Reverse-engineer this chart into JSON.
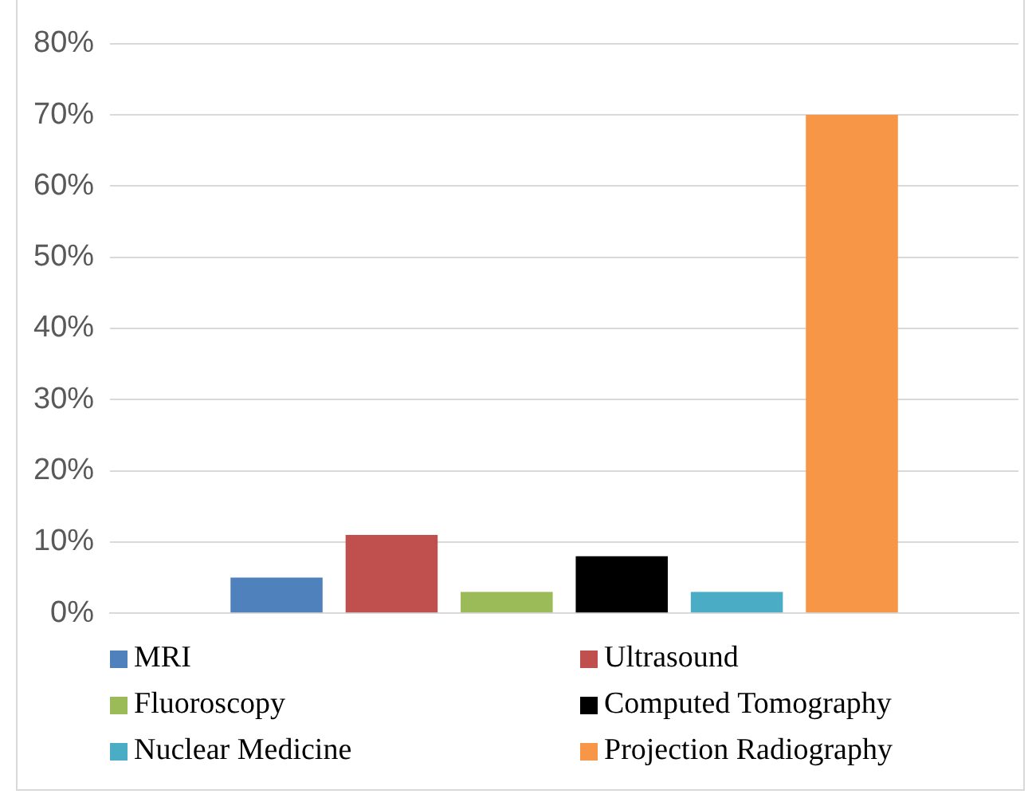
{
  "chart_data": {
    "type": "bar",
    "categories": [
      null
    ],
    "series": [
      {
        "name": "MRI",
        "color": "#4f81bd",
        "values": [
          5
        ]
      },
      {
        "name": "Ultrasound",
        "color": "#c0504d",
        "values": [
          11
        ]
      },
      {
        "name": "Fluoroscopy",
        "color": "#9bbb59",
        "values": [
          3
        ]
      },
      {
        "name": "Computed Tomography",
        "color": "#000000",
        "values": [
          8
        ]
      },
      {
        "name": "Nuclear Medicine",
        "color": "#4bacc6",
        "values": [
          3
        ]
      },
      {
        "name": "Projection Radiography",
        "color": "#f79646",
        "values": [
          70
        ]
      }
    ],
    "ylim": [
      0,
      80
    ],
    "yticks": [
      {
        "value": 0,
        "label": "0%"
      },
      {
        "value": 10,
        "label": "10%"
      },
      {
        "value": 20,
        "label": "20%"
      },
      {
        "value": 30,
        "label": "30%"
      },
      {
        "value": 40,
        "label": "40%"
      },
      {
        "value": 50,
        "label": "50%"
      },
      {
        "value": 60,
        "label": "60%"
      },
      {
        "value": 70,
        "label": "70%"
      },
      {
        "value": 80,
        "label": "80%"
      }
    ],
    "grid": "y",
    "legend": "bottom"
  }
}
